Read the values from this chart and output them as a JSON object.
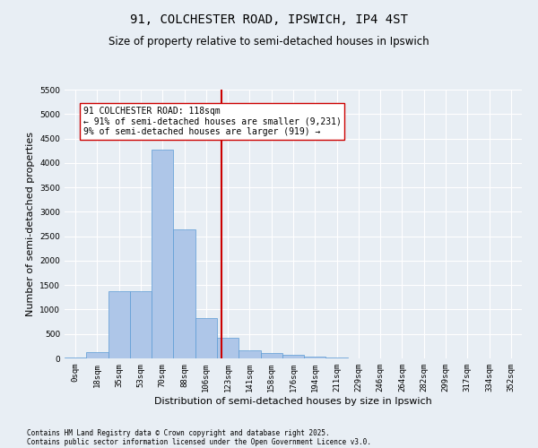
{
  "title": "91, COLCHESTER ROAD, IPSWICH, IP4 4ST",
  "subtitle": "Size of property relative to semi-detached houses in Ipswich",
  "xlabel": "Distribution of semi-detached houses by size in Ipswich",
  "ylabel": "Number of semi-detached properties",
  "categories": [
    "0sqm",
    "18sqm",
    "35sqm",
    "53sqm",
    "70sqm",
    "88sqm",
    "106sqm",
    "123sqm",
    "141sqm",
    "158sqm",
    "176sqm",
    "194sqm",
    "211sqm",
    "229sqm",
    "246sqm",
    "264sqm",
    "282sqm",
    "299sqm",
    "317sqm",
    "334sqm",
    "352sqm"
  ],
  "values": [
    10,
    130,
    1380,
    1380,
    4280,
    2640,
    830,
    415,
    170,
    110,
    80,
    40,
    10,
    0,
    0,
    0,
    0,
    0,
    0,
    0,
    0
  ],
  "bar_color": "#aec6e8",
  "bar_edge_color": "#5b9bd5",
  "vline_color": "#cc0000",
  "vline_index": 6.7,
  "annotation_title": "91 COLCHESTER ROAD: 118sqm",
  "annotation_line1": "← 91% of semi-detached houses are smaller (9,231)",
  "annotation_line2": "9% of semi-detached houses are larger (919) →",
  "annotation_box_color": "#ffffff",
  "annotation_box_edge": "#cc0000",
  "ylim": [
    0,
    5500
  ],
  "yticks": [
    0,
    500,
    1000,
    1500,
    2000,
    2500,
    3000,
    3500,
    4000,
    4500,
    5000,
    5500
  ],
  "footnote1": "Contains HM Land Registry data © Crown copyright and database right 2025.",
  "footnote2": "Contains public sector information licensed under the Open Government Licence v3.0.",
  "bg_color": "#e8eef4",
  "plot_bg_color": "#e8eef4",
  "title_fontsize": 10,
  "subtitle_fontsize": 8.5,
  "tick_fontsize": 6.5,
  "label_fontsize": 8,
  "ann_fontsize": 7,
  "footnote_fontsize": 5.5
}
